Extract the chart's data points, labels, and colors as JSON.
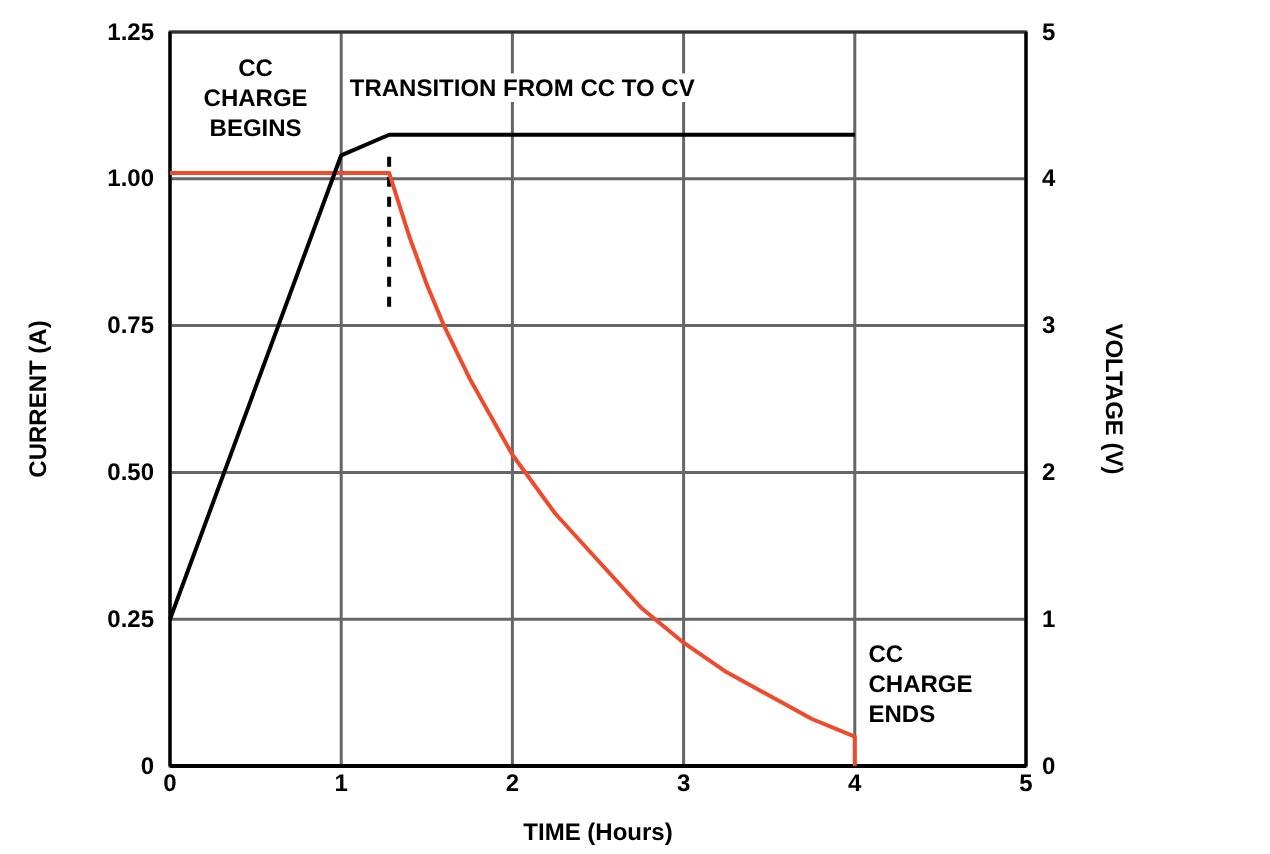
{
  "chart_data": {
    "type": "line",
    "xlabel": "TIME (Hours)",
    "ylabel": "CURRENT (A)",
    "y2label": "VOLTAGE (V)",
    "xlim": [
      0,
      5
    ],
    "xticks": [
      0,
      1,
      2,
      3,
      4,
      5
    ],
    "ylim": [
      0,
      1.25
    ],
    "yticks": [
      0,
      {
        "value": 0.25,
        "label": "0.25"
      },
      {
        "value": 0.5,
        "label": "0.50"
      },
      {
        "value": 0.75,
        "label": "0.75"
      },
      {
        "value": 1,
        "label": "1.00"
      },
      {
        "value": 1.25,
        "label": "1.25"
      }
    ],
    "y2lim": [
      0,
      5
    ],
    "y2ticks": [
      0,
      1,
      2,
      3,
      4,
      5
    ],
    "grid": true,
    "marker": "none",
    "series": [
      {
        "color": "#f04a2c",
        "x": [
          0,
          1.28,
          1.4,
          1.5,
          1.6,
          1.75,
          2,
          2.25,
          2.5,
          2.75,
          3,
          3.25,
          3.5,
          3.75,
          4,
          4
        ],
        "values": [
          1.01,
          1.01,
          0.9,
          0.82,
          0.75,
          0.66,
          0.53,
          0.43,
          0.35,
          0.27,
          0.21,
          0.16,
          0.12,
          0.08,
          0.05,
          0
        ]
      },
      {
        "color": "#000000",
        "axis": "y2",
        "x": [
          0,
          1,
          1.28,
          4
        ],
        "values": [
          1,
          4.16,
          4.3,
          4.3
        ]
      }
    ],
    "ref_lines": [
      {
        "axis": "x",
        "value": 1.28,
        "line_style": "dashed",
        "color": "#000000"
      }
    ],
    "annotations": [
      "CC\nCHARGE\nBEGINS",
      "TRANSITION FROM CC TO CV",
      "CC\nCHARGE\nENDS"
    ]
  }
}
